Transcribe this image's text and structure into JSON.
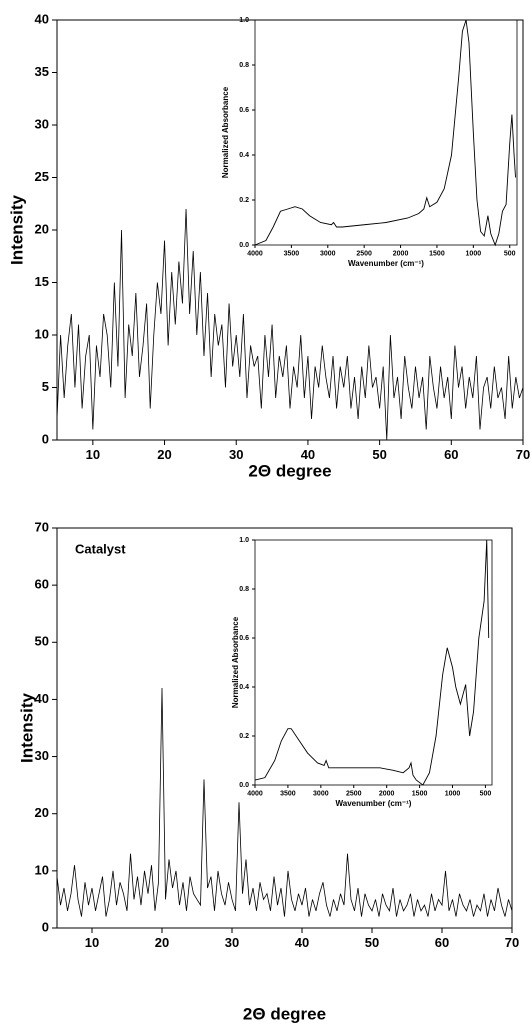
{
  "chart_data": [
    {
      "type": "line",
      "x_label": "2Θ degree",
      "y_label": "Intensity",
      "x": [
        5,
        5.5,
        6,
        6.5,
        7,
        7.5,
        8,
        8.5,
        9,
        9.5,
        10,
        10.5,
        11,
        11.5,
        12,
        12.5,
        13,
        13.5,
        14,
        14.5,
        15,
        15.5,
        16,
        16.5,
        17,
        17.5,
        18,
        18.5,
        19,
        19.5,
        20,
        20.5,
        21,
        21.5,
        22,
        22.5,
        23,
        23.5,
        24,
        24.5,
        25,
        25.5,
        26,
        26.5,
        27,
        27.5,
        28,
        28.5,
        29,
        29.5,
        30,
        30.5,
        31,
        31.5,
        32,
        32.5,
        33,
        33.5,
        34,
        34.5,
        35,
        35.5,
        36,
        36.5,
        37,
        37.5,
        38,
        38.5,
        39,
        39.5,
        40,
        40.5,
        41,
        41.5,
        42,
        42.5,
        43,
        43.5,
        44,
        44.5,
        45,
        45.5,
        46,
        46.5,
        47,
        47.5,
        48,
        48.5,
        49,
        49.5,
        50,
        50.5,
        51,
        51.5,
        52,
        52.5,
        53,
        53.5,
        54,
        54.5,
        55,
        55.5,
        56,
        56.5,
        57,
        57.5,
        58,
        58.5,
        59,
        59.5,
        60,
        60.5,
        61,
        61.5,
        62,
        62.5,
        63,
        63.5,
        64,
        64.5,
        65,
        65.5,
        66,
        66.5,
        67,
        67.5,
        68,
        68.5,
        69,
        69.5,
        70
      ],
      "values": [
        2,
        10,
        4,
        9,
        12,
        5,
        11,
        3,
        8,
        10,
        1,
        9,
        6,
        12,
        10,
        5,
        15,
        7,
        20,
        4,
        11,
        8,
        14,
        6,
        9,
        13,
        3,
        10,
        15,
        12,
        19,
        9,
        16,
        11,
        17,
        13,
        22,
        12,
        18,
        10,
        16,
        8,
        14,
        6,
        12,
        9,
        11,
        5,
        13,
        7,
        10,
        6,
        12,
        4,
        9,
        7,
        8,
        3,
        10,
        6,
        11,
        4,
        8,
        6,
        9,
        3,
        7,
        5,
        10,
        4,
        8,
        2,
        7,
        5,
        9,
        6,
        4,
        8,
        3,
        7,
        5,
        8,
        3,
        6,
        2,
        7,
        4,
        9,
        5,
        6,
        3,
        7,
        0,
        10,
        4,
        6,
        2,
        8,
        5,
        3,
        7,
        4,
        6,
        1,
        8,
        5,
        3,
        7,
        4,
        6,
        2,
        9,
        5,
        7,
        3,
        6,
        4,
        8,
        1,
        5,
        6,
        3,
        7,
        4,
        5,
        2,
        8,
        3,
        6,
        4,
        5
      ],
      "color": "#000000",
      "xlim": [
        5,
        70
      ],
      "ylim": [
        0,
        40
      ],
      "xticks": [
        10,
        20,
        30,
        40,
        50,
        60,
        70
      ],
      "yticks": [
        0,
        5,
        10,
        15,
        20,
        25,
        30,
        35,
        40
      ]
    },
    {
      "type": "line",
      "x_label": "Wavenumber (cm⁻¹)",
      "y_label": "Normalized Absorbance",
      "x": [
        4000,
        3850,
        3750,
        3650,
        3550,
        3450,
        3350,
        3250,
        3100,
        2950,
        2920,
        2880,
        2800,
        2500,
        2200,
        1900,
        1750,
        1680,
        1640,
        1600,
        1500,
        1400,
        1300,
        1200,
        1150,
        1100,
        1060,
        1000,
        950,
        900,
        850,
        800,
        760,
        700,
        650,
        600,
        550,
        500,
        470,
        440,
        420
      ],
      "values": [
        0,
        0.02,
        0.08,
        0.15,
        0.16,
        0.17,
        0.16,
        0.13,
        0.1,
        0.09,
        0.1,
        0.08,
        0.08,
        0.09,
        0.1,
        0.12,
        0.14,
        0.16,
        0.21,
        0.17,
        0.19,
        0.25,
        0.4,
        0.75,
        0.95,
        1,
        0.9,
        0.5,
        0.2,
        0.06,
        0.04,
        0.13,
        0.05,
        0,
        0.05,
        0.15,
        0.18,
        0.45,
        0.58,
        0.4,
        0.3
      ],
      "color": "#000000",
      "xlim": [
        4000,
        400
      ],
      "ylim": [
        0,
        1
      ],
      "xticks": [
        4000,
        3500,
        3000,
        2500,
        2000,
        1500,
        1000,
        500
      ],
      "yticks": [
        {
          "value": 0,
          "label": "0.0"
        },
        0.2,
        0.4,
        0.6,
        0.8,
        {
          "value": 1,
          "label": "1.0"
        }
      ]
    },
    {
      "type": "line",
      "x_label": "2Θ degree",
      "y_label": "Intensity",
      "annotation": "Catalyst",
      "x": [
        5,
        5.5,
        6,
        6.5,
        7,
        7.5,
        8,
        8.5,
        9,
        9.5,
        10,
        10.5,
        11,
        11.5,
        12,
        12.5,
        13,
        13.5,
        14,
        14.5,
        15,
        15.5,
        16,
        16.5,
        17,
        17.5,
        18,
        18.5,
        19,
        19.5,
        20,
        20.5,
        21,
        21.5,
        22,
        22.5,
        23,
        23.5,
        24,
        24.5,
        25,
        25.5,
        26,
        26.5,
        27,
        27.5,
        28,
        28.5,
        29,
        29.5,
        30,
        30.5,
        31,
        31.5,
        32,
        32.5,
        33,
        33.5,
        34,
        34.5,
        35,
        35.5,
        36,
        36.5,
        37,
        37.5,
        38,
        38.5,
        39,
        39.5,
        40,
        40.5,
        41,
        41.5,
        42,
        42.5,
        43,
        43.5,
        44,
        44.5,
        45,
        45.5,
        46,
        46.5,
        47,
        47.5,
        48,
        48.5,
        49,
        49.5,
        50,
        50.5,
        51,
        51.5,
        52,
        52.5,
        53,
        53.5,
        54,
        54.5,
        55,
        55.5,
        56,
        56.5,
        57,
        57.5,
        58,
        58.5,
        59,
        59.5,
        60,
        60.5,
        61,
        61.5,
        62,
        62.5,
        63,
        63.5,
        64,
        64.5,
        65,
        65.5,
        66,
        66.5,
        67,
        67.5,
        68,
        68.5,
        69,
        69.5,
        70
      ],
      "values": [
        9,
        4,
        7,
        3,
        6,
        11,
        5,
        2,
        8,
        4,
        7,
        3,
        6,
        9,
        2,
        5,
        10,
        4,
        8,
        6,
        3,
        13,
        5,
        9,
        4,
        10,
        6,
        11,
        3,
        8,
        42,
        5,
        12,
        7,
        10,
        4,
        8,
        3,
        9,
        6,
        5,
        4,
        26,
        7,
        9,
        3,
        10,
        6,
        4,
        8,
        5,
        3,
        22,
        6,
        12,
        4,
        7,
        3,
        8,
        5,
        6,
        3,
        9,
        4,
        7,
        2,
        10,
        5,
        3,
        6,
        4,
        7,
        2,
        5,
        3,
        6,
        8,
        4,
        2,
        5,
        3,
        6,
        4,
        13,
        5,
        3,
        7,
        2,
        6,
        4,
        3,
        5,
        2,
        6,
        4,
        3,
        7,
        2,
        5,
        3,
        4,
        6,
        2,
        5,
        3,
        4,
        2,
        6,
        3,
        5,
        4,
        10,
        3,
        5,
        2,
        6,
        4,
        3,
        5,
        2,
        4,
        3,
        6,
        2,
        5,
        3,
        7,
        4,
        2,
        5,
        3
      ],
      "color": "#000000",
      "annotation_color": "#8b1a8b",
      "xlim": [
        5,
        70
      ],
      "ylim": [
        0,
        70
      ],
      "xticks": [
        10,
        20,
        30,
        40,
        50,
        60,
        70
      ],
      "yticks": [
        0,
        10,
        20,
        30,
        40,
        50,
        60,
        70
      ]
    },
    {
      "type": "line",
      "x_label": "Wavenumber (cm⁻¹)",
      "y_label": "Normalized Absorbance",
      "x": [
        4000,
        3850,
        3700,
        3600,
        3500,
        3450,
        3350,
        3200,
        3050,
        2950,
        2920,
        2880,
        2700,
        2400,
        2100,
        1900,
        1750,
        1660,
        1630,
        1600,
        1550,
        1450,
        1350,
        1250,
        1150,
        1080,
        1000,
        950,
        880,
        800,
        740,
        680,
        600,
        520,
        480,
        450
      ],
      "values": [
        0.02,
        0.03,
        0.1,
        0.18,
        0.23,
        0.23,
        0.19,
        0.13,
        0.09,
        0.08,
        0.1,
        0.07,
        0.07,
        0.07,
        0.07,
        0.06,
        0.05,
        0.07,
        0.09,
        0.04,
        0.02,
        0,
        0.05,
        0.2,
        0.45,
        0.56,
        0.48,
        0.4,
        0.33,
        0.41,
        0.2,
        0.3,
        0.6,
        0.75,
        1,
        0.6
      ],
      "color": "#000000",
      "xlim": [
        4000,
        400
      ],
      "ylim": [
        0,
        1
      ],
      "xticks": [
        4000,
        3500,
        3000,
        2500,
        2000,
        1500,
        1000,
        500
      ],
      "yticks": [
        {
          "value": 0,
          "label": "0.0"
        },
        0.2,
        0.4,
        0.6,
        0.8,
        {
          "value": 1,
          "label": "1.0"
        }
      ]
    }
  ]
}
